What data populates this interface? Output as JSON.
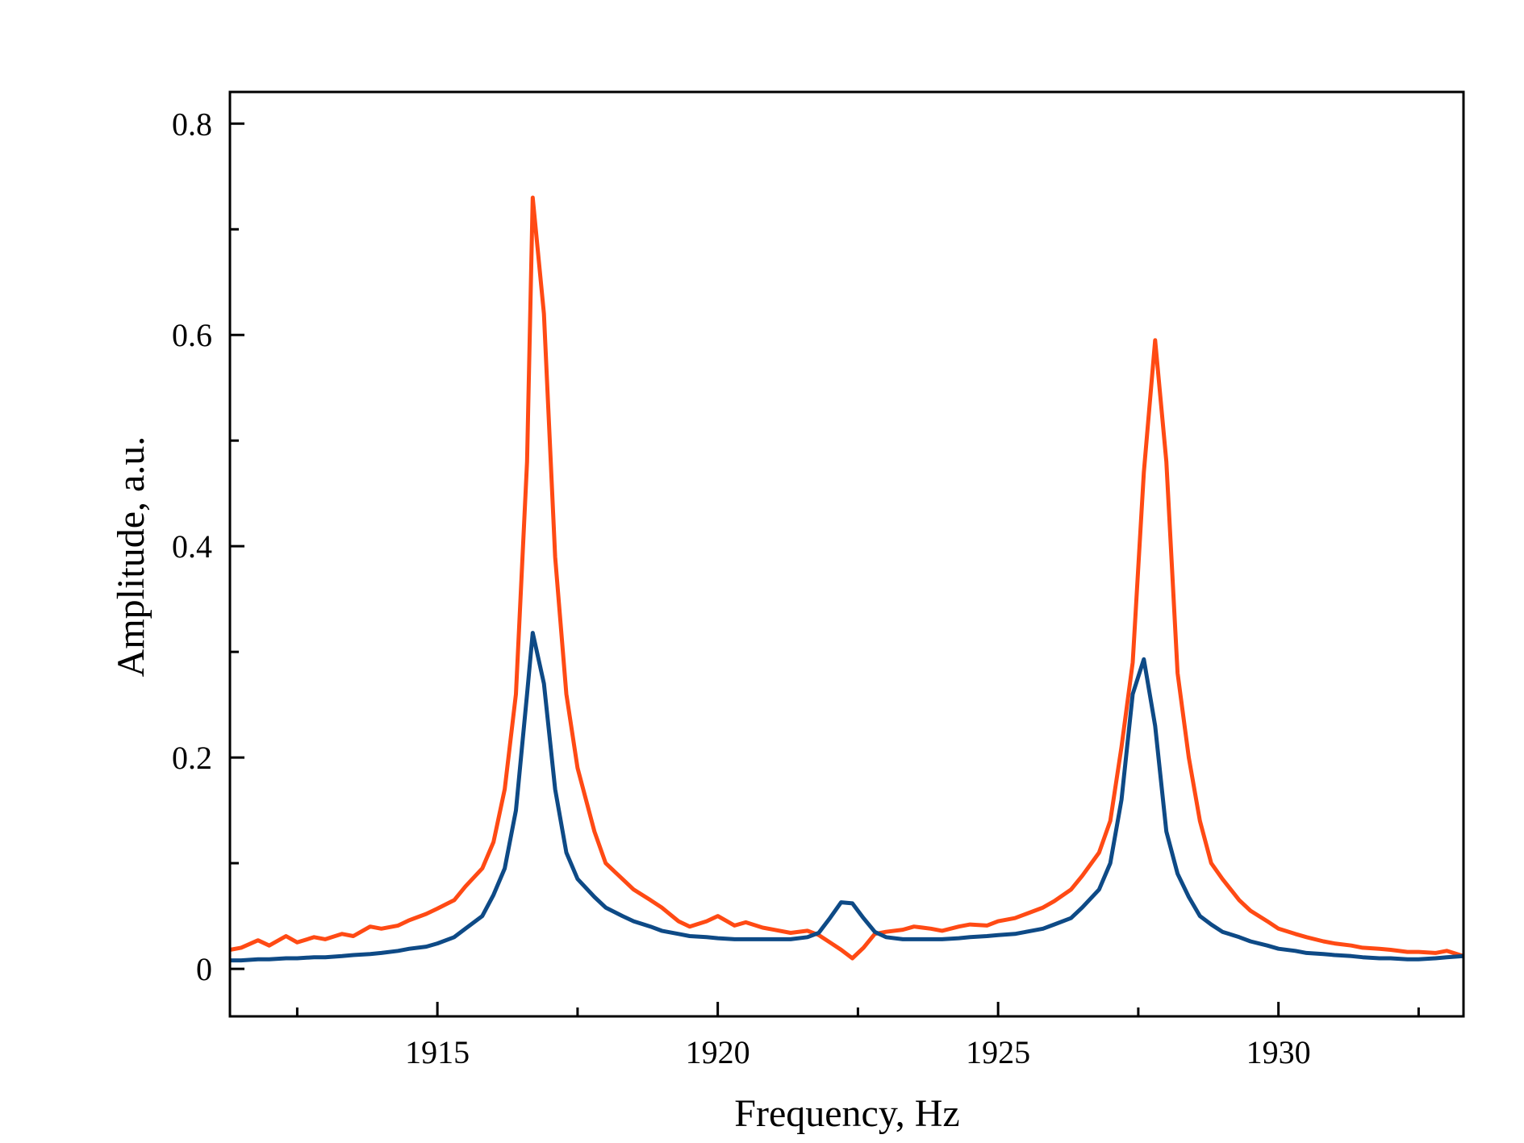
{
  "chart_data": {
    "type": "line",
    "xlabel": "Frequency, Hz",
    "ylabel": "Amplitude, a.u.",
    "xlim": [
      1911.3,
      1933.3
    ],
    "ylim": [
      -0.045,
      0.83
    ],
    "x_ticks": [
      1915,
      1920,
      1925,
      1930
    ],
    "x_tick_labels": [
      "1915",
      "1920",
      "1925",
      "1930"
    ],
    "x_minor_ticks": [
      1912.5,
      1917.5,
      1922.5,
      1927.5,
      1932.5
    ],
    "y_ticks": [
      0,
      0.2,
      0.4,
      0.6,
      0.8
    ],
    "y_tick_labels": [
      "0",
      "0.2",
      "0.4",
      "0.6",
      "0.8"
    ],
    "y_minor_ticks": [
      0.1,
      0.3,
      0.5,
      0.7
    ],
    "grid": false,
    "legend": "none",
    "series": [
      {
        "color": "#ff4a14",
        "x": [
          1911.3,
          1911.5,
          1911.8,
          1912.0,
          1912.3,
          1912.5,
          1912.8,
          1913.0,
          1913.3,
          1913.5,
          1913.8,
          1914.0,
          1914.3,
          1914.5,
          1914.8,
          1915.0,
          1915.3,
          1915.5,
          1915.8,
          1916.0,
          1916.2,
          1916.4,
          1916.6,
          1916.7,
          1916.9,
          1917.1,
          1917.3,
          1917.5,
          1917.8,
          1918.0,
          1918.3,
          1918.5,
          1918.8,
          1919.0,
          1919.3,
          1919.5,
          1919.8,
          1920.0,
          1920.3,
          1920.5,
          1920.8,
          1921.0,
          1921.3,
          1921.6,
          1921.8,
          1922.0,
          1922.2,
          1922.4,
          1922.6,
          1922.8,
          1923.0,
          1923.3,
          1923.5,
          1923.8,
          1924.0,
          1924.3,
          1924.5,
          1924.8,
          1925.0,
          1925.3,
          1925.5,
          1925.8,
          1926.0,
          1926.3,
          1926.5,
          1926.8,
          1927.0,
          1927.2,
          1927.4,
          1927.6,
          1927.8,
          1928.0,
          1928.2,
          1928.4,
          1928.6,
          1928.8,
          1929.0,
          1929.3,
          1929.5,
          1929.8,
          1930.0,
          1930.3,
          1930.5,
          1930.8,
          1931.0,
          1931.3,
          1931.5,
          1931.8,
          1932.0,
          1932.3,
          1932.5,
          1932.8,
          1933.0,
          1933.3
        ],
        "y": [
          0.018,
          0.02,
          0.027,
          0.022,
          0.031,
          0.025,
          0.03,
          0.028,
          0.033,
          0.031,
          0.04,
          0.038,
          0.041,
          0.046,
          0.052,
          0.057,
          0.065,
          0.078,
          0.095,
          0.12,
          0.17,
          0.26,
          0.48,
          0.73,
          0.62,
          0.39,
          0.26,
          0.19,
          0.13,
          0.1,
          0.085,
          0.075,
          0.065,
          0.058,
          0.045,
          0.04,
          0.045,
          0.05,
          0.041,
          0.044,
          0.039,
          0.037,
          0.034,
          0.036,
          0.032,
          0.025,
          0.018,
          0.01,
          0.02,
          0.033,
          0.035,
          0.037,
          0.04,
          0.038,
          0.036,
          0.04,
          0.042,
          0.041,
          0.045,
          0.048,
          0.052,
          0.058,
          0.064,
          0.075,
          0.088,
          0.11,
          0.14,
          0.21,
          0.29,
          0.47,
          0.595,
          0.48,
          0.28,
          0.2,
          0.14,
          0.1,
          0.085,
          0.065,
          0.055,
          0.045,
          0.038,
          0.033,
          0.03,
          0.026,
          0.024,
          0.022,
          0.02,
          0.019,
          0.018,
          0.016,
          0.016,
          0.015,
          0.017,
          0.012
        ]
      },
      {
        "color": "#0e4a86",
        "x": [
          1911.3,
          1911.5,
          1911.8,
          1912.0,
          1912.3,
          1912.5,
          1912.8,
          1913.0,
          1913.3,
          1913.5,
          1913.8,
          1914.0,
          1914.3,
          1914.5,
          1914.8,
          1915.0,
          1915.3,
          1915.5,
          1915.8,
          1916.0,
          1916.2,
          1916.4,
          1916.6,
          1916.7,
          1916.9,
          1917.1,
          1917.3,
          1917.5,
          1917.8,
          1918.0,
          1918.3,
          1918.5,
          1918.8,
          1919.0,
          1919.3,
          1919.5,
          1919.8,
          1920.0,
          1920.3,
          1920.5,
          1920.8,
          1921.0,
          1921.3,
          1921.6,
          1921.8,
          1922.0,
          1922.2,
          1922.4,
          1922.6,
          1922.8,
          1923.0,
          1923.3,
          1923.5,
          1923.8,
          1924.0,
          1924.3,
          1924.5,
          1924.8,
          1925.0,
          1925.3,
          1925.5,
          1925.8,
          1926.0,
          1926.3,
          1926.5,
          1926.8,
          1927.0,
          1927.2,
          1927.4,
          1927.6,
          1927.8,
          1928.0,
          1928.2,
          1928.4,
          1928.6,
          1928.8,
          1929.0,
          1929.3,
          1929.5,
          1929.8,
          1930.0,
          1930.3,
          1930.5,
          1930.8,
          1931.0,
          1931.3,
          1931.5,
          1931.8,
          1932.0,
          1932.3,
          1932.5,
          1932.8,
          1933.0,
          1933.3
        ],
        "y": [
          0.008,
          0.008,
          0.009,
          0.009,
          0.01,
          0.01,
          0.011,
          0.011,
          0.012,
          0.013,
          0.014,
          0.015,
          0.017,
          0.019,
          0.021,
          0.024,
          0.03,
          0.038,
          0.05,
          0.07,
          0.095,
          0.15,
          0.26,
          0.318,
          0.27,
          0.17,
          0.11,
          0.085,
          0.068,
          0.058,
          0.05,
          0.045,
          0.04,
          0.036,
          0.033,
          0.031,
          0.03,
          0.029,
          0.028,
          0.028,
          0.028,
          0.028,
          0.028,
          0.03,
          0.034,
          0.048,
          0.063,
          0.062,
          0.048,
          0.035,
          0.03,
          0.028,
          0.028,
          0.028,
          0.028,
          0.029,
          0.03,
          0.031,
          0.032,
          0.033,
          0.035,
          0.038,
          0.042,
          0.048,
          0.058,
          0.075,
          0.1,
          0.16,
          0.26,
          0.293,
          0.23,
          0.13,
          0.09,
          0.068,
          0.05,
          0.042,
          0.035,
          0.03,
          0.026,
          0.022,
          0.019,
          0.017,
          0.015,
          0.014,
          0.013,
          0.012,
          0.011,
          0.01,
          0.01,
          0.009,
          0.009,
          0.01,
          0.011,
          0.012
        ]
      }
    ]
  }
}
